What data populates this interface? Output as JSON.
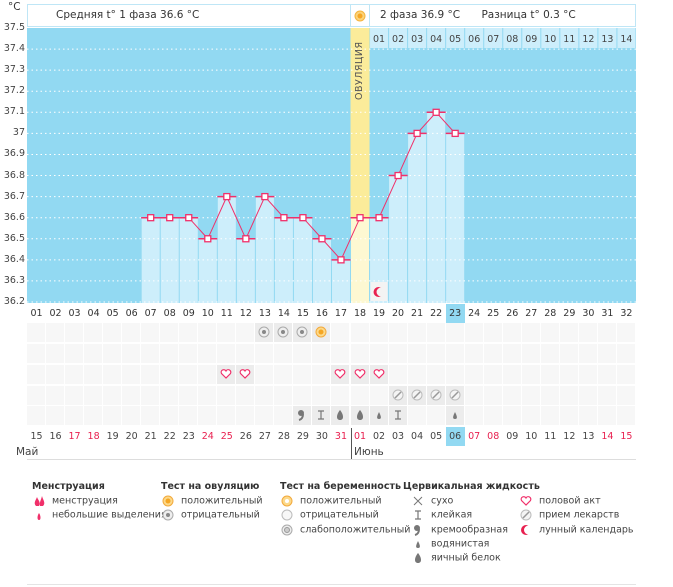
{
  "unit_label": "°C",
  "header": {
    "phase1": "Средняя t° 1 фаза 36.6 °C",
    "phase2": "2 фаза 36.9 °C",
    "difference": "Разница t° 0.3 °C",
    "ovulation_label": "ОВУЛЯЦИЯ"
  },
  "colors": {
    "plot_bg": "#92d9f2",
    "bar": "#cdeefb",
    "ovulation": "#fbec9a",
    "ovulation_bar": "#fdf8d2",
    "line": "#f0306a",
    "weekend": "#e8204f"
  },
  "chart_data": {
    "type": "line",
    "ylim": [
      36.2,
      37.5
    ],
    "y_ticks": [
      "37.5",
      "37.4",
      "37.3",
      "37.2",
      "37.1",
      "37",
      "36.9",
      "36.8",
      "36.7",
      "36.6",
      "36.5",
      "36.4",
      "36.3",
      "36.2"
    ],
    "cycle_days": [
      "01",
      "02",
      "03",
      "04",
      "05",
      "06",
      "07",
      "08",
      "09",
      "10",
      "11",
      "12",
      "13",
      "14",
      "15",
      "16",
      "17",
      "18",
      "19",
      "20",
      "21",
      "22",
      "23",
      "24",
      "25",
      "26",
      "27",
      "28",
      "29",
      "30",
      "31",
      "32"
    ],
    "temperature_days": [
      7,
      8,
      9,
      10,
      11,
      12,
      13,
      14,
      15,
      16,
      17,
      18,
      19,
      20,
      21,
      22,
      23
    ],
    "temperatures": [
      36.6,
      36.6,
      36.6,
      36.5,
      36.7,
      36.5,
      36.7,
      36.6,
      36.6,
      36.5,
      36.4,
      36.6,
      36.6,
      36.8,
      37.0,
      37.1,
      37.0
    ],
    "ovulation_day": 18,
    "current_day": 23,
    "phase2_days": [
      "01",
      "02",
      "03",
      "04",
      "05",
      "06",
      "07",
      "08",
      "09",
      "10",
      "11",
      "12",
      "13",
      "14"
    ],
    "grid": true
  },
  "calendar": {
    "dates": [
      "15",
      "16",
      "17",
      "18",
      "19",
      "20",
      "21",
      "22",
      "23",
      "24",
      "25",
      "26",
      "27",
      "28",
      "29",
      "30",
      "31",
      "01",
      "02",
      "03",
      "04",
      "05",
      "06",
      "07",
      "08",
      "09",
      "10",
      "11",
      "12",
      "13",
      "14",
      "15"
    ],
    "weekend_indexes": [
      2,
      3,
      9,
      10,
      16,
      17,
      23,
      24,
      30,
      31
    ],
    "today_index": 22,
    "months": [
      "Май",
      "Июнь"
    ]
  },
  "markers": {
    "ovulation_test": {
      "13": "negative",
      "14": "negative",
      "15": "negative",
      "16": "positive"
    },
    "pregnancy_test": {},
    "intercourse": {
      "11": "heart",
      "12": "heart",
      "17": "heart",
      "18": "heart",
      "19": "heart"
    },
    "medication": {
      "20": "pill",
      "21": "pill",
      "22": "pill",
      "23": "pill"
    },
    "cervical": {
      "15": "creamy",
      "16": "sticky",
      "17": "eggwhite",
      "18": "eggwhite",
      "19": "watery",
      "20": "sticky",
      "23": "watery"
    },
    "moon_day": 19
  },
  "legend": {
    "menstruation": {
      "title": "Менструация",
      "items": [
        "менструация",
        "небольшие выделения"
      ]
    },
    "ovulation_test": {
      "title": "Тест на овуляцию",
      "items": [
        "положительный",
        "отрицательный"
      ]
    },
    "pregnancy_test": {
      "title": "Тест на беременность",
      "items": [
        "положительный",
        "отрицательный",
        "слабоположительный"
      ]
    },
    "cervical": {
      "title": "Цервикальная жидкость",
      "items": [
        "сухо",
        "клейкая",
        "кремообразная",
        "водянистая",
        "яичный белок"
      ]
    },
    "other": {
      "items": [
        "половой акт",
        "прием лекарств",
        "лунный календарь"
      ]
    }
  }
}
